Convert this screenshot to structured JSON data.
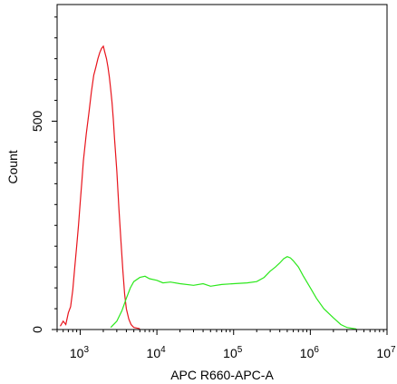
{
  "chart_data": {
    "type": "line",
    "title": "",
    "xlabel": "APC R660-APC-A",
    "ylabel": "Count",
    "x_scale": "log",
    "xlim": [
      500,
      10000000
    ],
    "ylim": [
      0,
      780
    ],
    "x_ticks": [
      {
        "value": 1000,
        "base": "10",
        "exp": "3"
      },
      {
        "value": 10000,
        "base": "10",
        "exp": "4"
      },
      {
        "value": 100000,
        "base": "10",
        "exp": "5"
      },
      {
        "value": 1000000,
        "base": "10",
        "exp": "6"
      },
      {
        "value": 10000000,
        "base": "10",
        "exp": "7"
      }
    ],
    "y_ticks": [
      {
        "value": 0,
        "label": "0"
      },
      {
        "value": 500,
        "label": "500"
      }
    ],
    "grid": false,
    "legend": "none",
    "series": [
      {
        "color": "#e8141c",
        "points": [
          [
            550,
            8
          ],
          [
            600,
            20
          ],
          [
            650,
            12
          ],
          [
            700,
            40
          ],
          [
            750,
            55
          ],
          [
            800,
            95
          ],
          [
            850,
            150
          ],
          [
            900,
            200
          ],
          [
            950,
            250
          ],
          [
            1000,
            305
          ],
          [
            1050,
            355
          ],
          [
            1100,
            405
          ],
          [
            1200,
            470
          ],
          [
            1300,
            520
          ],
          [
            1400,
            570
          ],
          [
            1500,
            610
          ],
          [
            1600,
            630
          ],
          [
            1700,
            650
          ],
          [
            1800,
            665
          ],
          [
            1900,
            675
          ],
          [
            2000,
            680
          ],
          [
            2100,
            665
          ],
          [
            2200,
            650
          ],
          [
            2300,
            630
          ],
          [
            2400,
            605
          ],
          [
            2500,
            575
          ],
          [
            2600,
            545
          ],
          [
            2700,
            505
          ],
          [
            2800,
            460
          ],
          [
            3000,
            380
          ],
          [
            3200,
            290
          ],
          [
            3400,
            210
          ],
          [
            3600,
            140
          ],
          [
            3800,
            85
          ],
          [
            4000,
            50
          ],
          [
            4300,
            25
          ],
          [
            4600,
            12
          ],
          [
            5000,
            5
          ],
          [
            6000,
            2
          ]
        ]
      },
      {
        "color": "#2ce81c",
        "points": [
          [
            2500,
            5
          ],
          [
            3000,
            20
          ],
          [
            3500,
            45
          ],
          [
            4000,
            75
          ],
          [
            4500,
            100
          ],
          [
            5000,
            115
          ],
          [
            6000,
            125
          ],
          [
            7000,
            128
          ],
          [
            8000,
            122
          ],
          [
            10000,
            118
          ],
          [
            12000,
            112
          ],
          [
            15000,
            114
          ],
          [
            20000,
            110
          ],
          [
            30000,
            106
          ],
          [
            40000,
            110
          ],
          [
            50000,
            104
          ],
          [
            70000,
            108
          ],
          [
            100000,
            110
          ],
          [
            150000,
            112
          ],
          [
            200000,
            115
          ],
          [
            250000,
            125
          ],
          [
            300000,
            140
          ],
          [
            350000,
            150
          ],
          [
            400000,
            160
          ],
          [
            450000,
            170
          ],
          [
            500000,
            175
          ],
          [
            550000,
            172
          ],
          [
            600000,
            165
          ],
          [
            700000,
            150
          ],
          [
            800000,
            130
          ],
          [
            1000000,
            100
          ],
          [
            1200000,
            75
          ],
          [
            1500000,
            50
          ],
          [
            2000000,
            28
          ],
          [
            2500000,
            12
          ],
          [
            3000000,
            5
          ],
          [
            4000000,
            1
          ]
        ]
      }
    ]
  }
}
